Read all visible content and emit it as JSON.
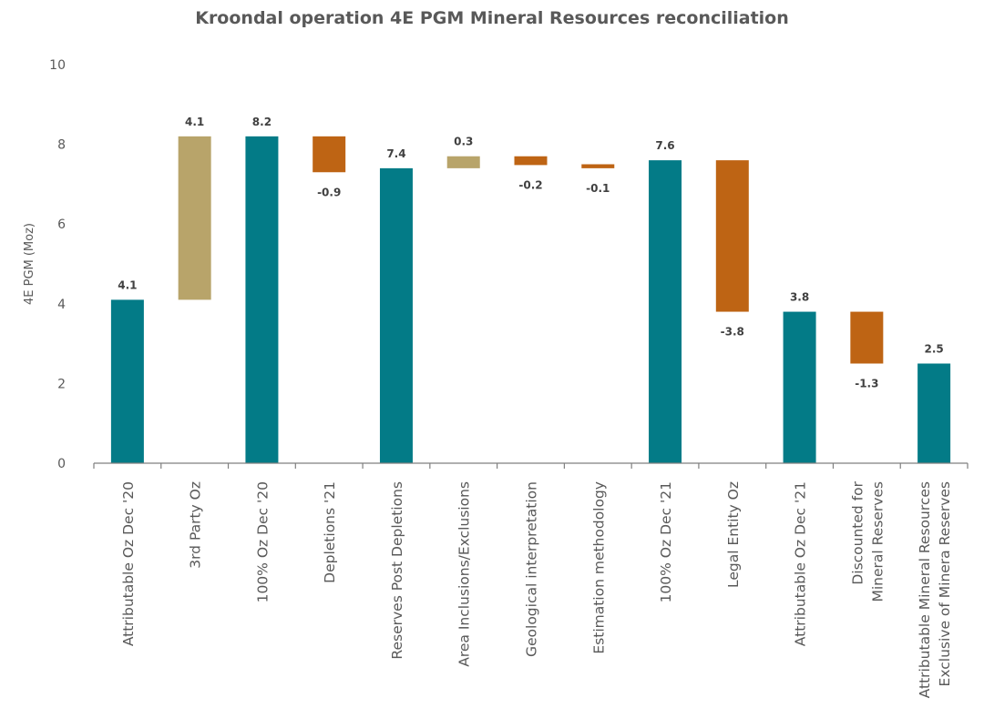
{
  "chart_data": {
    "type": "bar",
    "subtype": "waterfall",
    "title": "Kroondal operation 4E PGM Mineral Resources reconciliation",
    "xlabel": "",
    "ylabel": "4E PGM (Moz)",
    "ylim": [
      0,
      10
    ],
    "yticks": [
      "0",
      "2",
      "4",
      "6",
      "8",
      "10"
    ],
    "grid": false,
    "legend": "none",
    "colors": {
      "total": "#037B87",
      "increase": "#B8A46A",
      "decrease": "#BE6414",
      "axis": "#7F7F7F",
      "text": "#595959",
      "label": "#404040"
    },
    "categories": [
      [
        "Attributable Oz Dec '20"
      ],
      [
        "3rd Party Oz"
      ],
      [
        "100% Oz Dec '20"
      ],
      [
        "Depletions '21"
      ],
      [
        "Reserves Post Depletions"
      ],
      [
        "Area Inclusions/Exclusions"
      ],
      [
        "Geological interpretation"
      ],
      [
        "Estimation methodology"
      ],
      [
        "100% Oz Dec '21"
      ],
      [
        "Legal Entity Oz"
      ],
      [
        "Attributable Oz Dec '21"
      ],
      [
        "Discounted for",
        "Mineral Reserves"
      ],
      [
        "Attributable Mineral Resources",
        "Exclusive of Minera Reserves"
      ]
    ],
    "bars": [
      {
        "kind": "total",
        "base": 0,
        "top": 4.1,
        "label": "4.1"
      },
      {
        "kind": "increase",
        "base": 4.1,
        "top": 8.2,
        "label": "4.1"
      },
      {
        "kind": "total",
        "base": 0,
        "top": 8.2,
        "label": "8.2"
      },
      {
        "kind": "decrease",
        "base": 7.3,
        "top": 8.2,
        "label": "-0.9"
      },
      {
        "kind": "total",
        "base": 0,
        "top": 7.4,
        "label": "7.4"
      },
      {
        "kind": "increase",
        "base": 7.4,
        "top": 7.7,
        "label": "0.3"
      },
      {
        "kind": "decrease",
        "base": 7.48,
        "top": 7.7,
        "label": "-0.2"
      },
      {
        "kind": "decrease",
        "base": 7.4,
        "top": 7.5,
        "label": "-0.1"
      },
      {
        "kind": "total",
        "base": 0,
        "top": 7.6,
        "label": "7.6"
      },
      {
        "kind": "decrease",
        "base": 3.8,
        "top": 7.6,
        "label": "-3.8"
      },
      {
        "kind": "total",
        "base": 0,
        "top": 3.8,
        "label": "3.8"
      },
      {
        "kind": "decrease",
        "base": 2.5,
        "top": 3.8,
        "label": "-1.3"
      },
      {
        "kind": "total",
        "base": 0,
        "top": 2.5,
        "label": "2.5"
      }
    ]
  }
}
